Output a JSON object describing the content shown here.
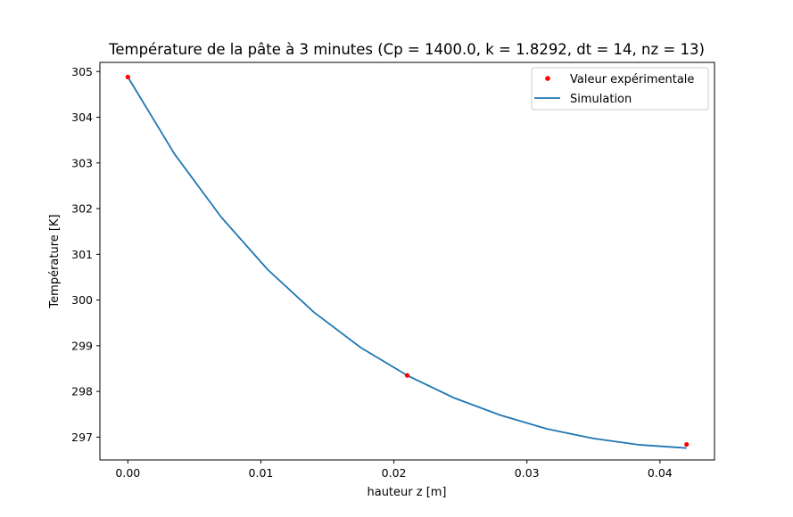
{
  "chart_data": {
    "type": "line",
    "title": "Température de la pâte à 3 minutes (Cp = 1400.0, k = 1.8292, dt = 14, nz = 13)",
    "xlabel": "hauteur z [m]",
    "ylabel": "Température [K]",
    "xlim": [
      -0.0021,
      0.0441
    ],
    "ylim": [
      296.5,
      305.2
    ],
    "xticks": [
      0.0,
      0.01,
      0.02,
      0.03,
      0.04
    ],
    "xtick_labels": [
      "0.00",
      "0.01",
      "0.02",
      "0.03",
      "0.04"
    ],
    "yticks": [
      297,
      298,
      299,
      300,
      301,
      302,
      303,
      304,
      305
    ],
    "ytick_labels": [
      "297",
      "298",
      "299",
      "300",
      "301",
      "302",
      "303",
      "304",
      "305"
    ],
    "grid": false,
    "legend_position": "top-right",
    "series": [
      {
        "name": "Valeur expérimentale",
        "kind": "scatter",
        "color": "#ff0000",
        "x": [
          0.0,
          0.021,
          0.042
        ],
        "y": [
          304.88,
          298.35,
          296.84
        ]
      },
      {
        "name": "Simulation",
        "kind": "line",
        "color": "#1f77b4",
        "x": [
          0.0,
          0.0035,
          0.007,
          0.0105,
          0.014,
          0.0175,
          0.021,
          0.0245,
          0.028,
          0.0315,
          0.035,
          0.0385,
          0.042
        ],
        "y": [
          304.88,
          303.2,
          301.82,
          300.67,
          299.73,
          298.96,
          298.35,
          297.86,
          297.48,
          297.18,
          296.97,
          296.83,
          296.76
        ]
      }
    ]
  }
}
